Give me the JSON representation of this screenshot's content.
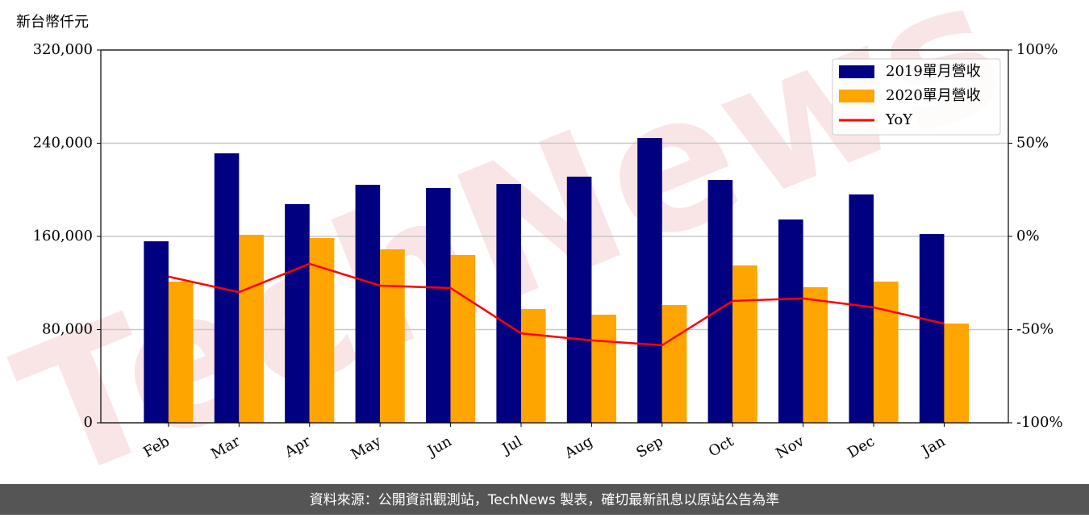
{
  "chart_data": {
    "type": "bar_line",
    "y_axis_label": "新台幣仟元",
    "watermark": "TechNews",
    "source": "資料來源：公開資訊觀測站，TechNews 製表，確切最新訊息以原站公告為準",
    "categories": [
      "Feb",
      "Mar",
      "Apr",
      "May",
      "Jun",
      "Jul",
      "Aug",
      "Sep",
      "Oct",
      "Nov",
      "Dec",
      "Jan"
    ],
    "series": [
      {
        "name": "2019單月營收",
        "color": "#000080",
        "type": "bar",
        "values": [
          155800,
          231300,
          187700,
          204300,
          201600,
          205000,
          211300,
          244500,
          208500,
          174500,
          196000,
          162100
        ]
      },
      {
        "name": "2020單月營收",
        "color": "#ffa500",
        "type": "bar",
        "values": [
          121200,
          161400,
          158600,
          148900,
          144100,
          97700,
          92800,
          101100,
          135100,
          116400,
          121200,
          85200
        ]
      },
      {
        "name": "YoY",
        "color": "#ff0000",
        "type": "line",
        "axis": "y2",
        "values": [
          -21.6,
          -29.9,
          -14.7,
          -26.4,
          -27.7,
          -52,
          -55.8,
          -58.4,
          -34.6,
          -33.3,
          -38.1,
          -46.8
        ]
      }
    ],
    "ylim": [
      0,
      320000
    ],
    "yticks": [
      0,
      {
        "value": 80000,
        "label": "80,000"
      },
      {
        "value": 160000,
        "label": "160,000"
      },
      {
        "value": 240000,
        "label": "240,000"
      },
      {
        "value": 320000,
        "label": "320,000"
      }
    ],
    "y2lim": [
      -100,
      100
    ],
    "y2ticks": [
      {
        "value": -100,
        "label": "-100%"
      },
      {
        "value": -50,
        "label": "-50%"
      },
      {
        "value": 0,
        "label": "0%"
      },
      {
        "value": 50,
        "label": "50%"
      },
      {
        "value": 100,
        "label": "100%"
      }
    ],
    "grid": true,
    "legend": "upper right"
  }
}
